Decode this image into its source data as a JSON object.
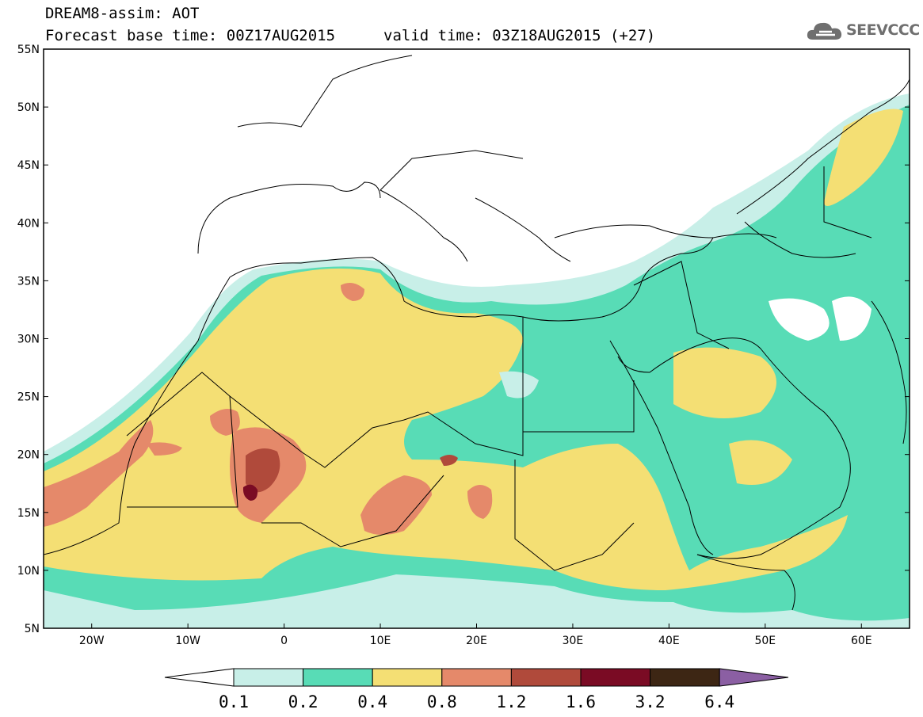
{
  "header": {
    "title": "DREAM8-assim: AOT",
    "base_time": "Forecast base time: 00Z17AUG2015",
    "valid_time": "valid time: 03Z18AUG2015 (+27)"
  },
  "logo": {
    "text": "SEEVCCC",
    "icon": "cloud-icon"
  },
  "map": {
    "lon_range": [
      -25,
      65
    ],
    "lat_range": [
      5,
      55
    ],
    "lat_ticks": [
      "5N",
      "10N",
      "15N",
      "20N",
      "25N",
      "30N",
      "35N",
      "40N",
      "45N",
      "50N",
      "55N"
    ],
    "lon_ticks": [
      "20W",
      "10W",
      "0",
      "10E",
      "20E",
      "30E",
      "40E",
      "50E",
      "60E"
    ]
  },
  "colorbar": {
    "levels": [
      "0.1",
      "0.2",
      "0.4",
      "0.8",
      "1.2",
      "1.6",
      "3.2",
      "6.4"
    ],
    "colors": [
      "#ffffff",
      "#c8efe8",
      "#58dcb6",
      "#f4df74",
      "#e5896a",
      "#b04a3b",
      "#7a0b24",
      "#3d2614",
      "#8b5fa3"
    ]
  }
}
